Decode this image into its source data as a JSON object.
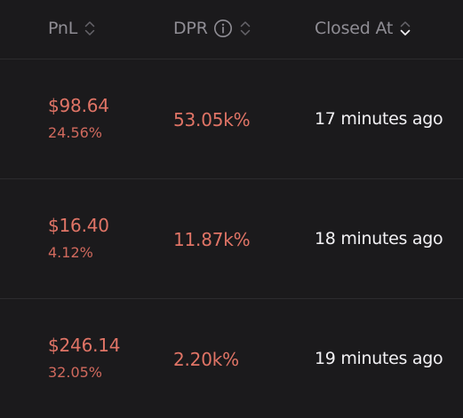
{
  "header": {
    "columns": [
      {
        "label": "PnL",
        "sortable": true,
        "sort_state": "none"
      },
      {
        "label": "DPR",
        "sortable": true,
        "sort_state": "none",
        "has_info_icon": true
      },
      {
        "label": "Closed At",
        "sortable": true,
        "sort_state": "descending"
      }
    ]
  },
  "rows": [
    {
      "pnl_amount": "$98.64",
      "pnl_percent": "24.56%",
      "dpr": "53.05k%",
      "closed_at": "17 minutes ago"
    },
    {
      "pnl_amount": "$16.40",
      "pnl_percent": "4.12%",
      "dpr": "11.87k%",
      "closed_at": "18 minutes ago"
    },
    {
      "pnl_amount": "$246.14",
      "pnl_percent": "32.05%",
      "dpr": "2.20k%",
      "closed_at": "19 minutes ago"
    }
  ],
  "colors": {
    "background": "#1b1a1c",
    "header_text": "#8f8d94",
    "negative_value": "#e07466",
    "primary_text": "#f2f1f4",
    "divider": "#2c2b2e"
  },
  "icons": {
    "sort": "sort-chevrons-icon",
    "info": "info-circle-icon"
  }
}
